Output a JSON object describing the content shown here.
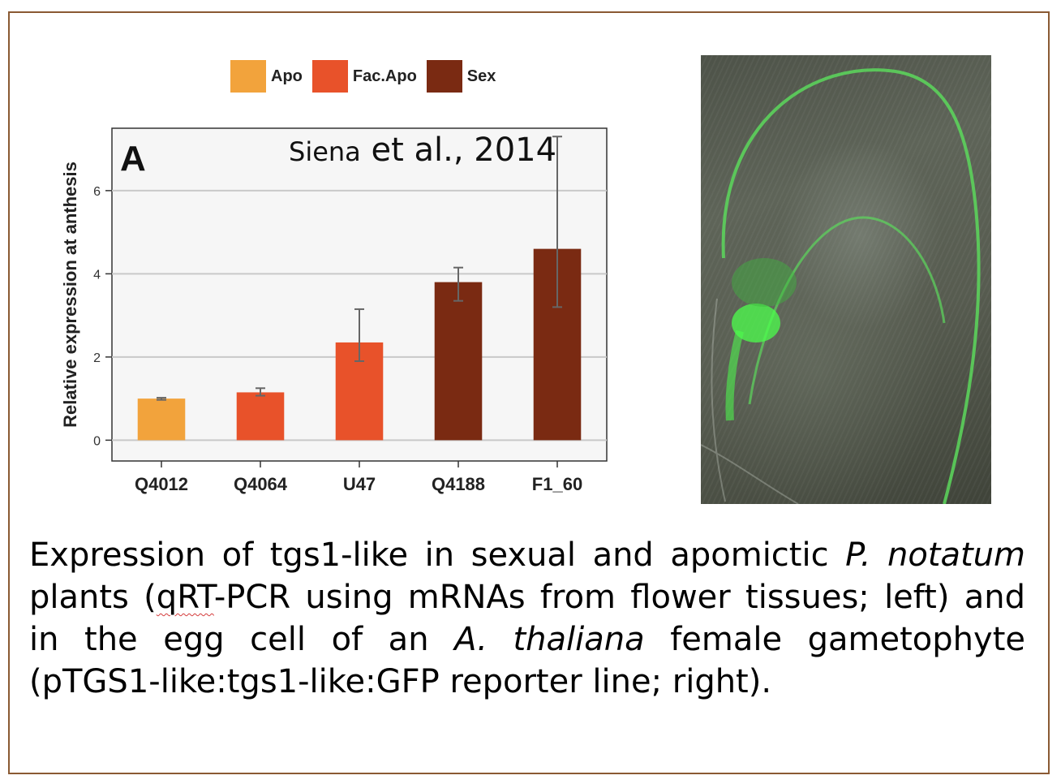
{
  "citation": {
    "author": "Siena",
    "rest": "et al., 2014"
  },
  "chart_data": {
    "type": "bar",
    "panel_label": "A",
    "ylabel": "Relative expression at anthesis",
    "ylim": [
      -0.5,
      7.5
    ],
    "yticks": [
      0,
      2,
      4,
      6
    ],
    "grid": true,
    "legend_position": "top",
    "legend": [
      {
        "name": "Apo",
        "color": "#f2a33c"
      },
      {
        "name": "Fac.Apo",
        "color": "#e8522a"
      },
      {
        "name": "Sex",
        "color": "#7a2a12"
      }
    ],
    "categories": [
      "Q4012",
      "Q4064",
      "U47",
      "Q4188",
      "F1_60"
    ],
    "values": [
      1.0,
      1.15,
      2.35,
      3.8,
      4.6
    ],
    "error_low": [
      0.97,
      1.07,
      1.9,
      3.35,
      3.2
    ],
    "error_high": [
      1.02,
      1.25,
      3.15,
      4.15,
      7.3
    ],
    "groups": [
      "Apo",
      "Fac.Apo",
      "Fac.Apo",
      "Sex",
      "Sex"
    ]
  },
  "image": {
    "name": "confocal-egg-cell-gfp",
    "accent": "#3cff3c"
  },
  "caption": {
    "p1": "Expression of tgs1-like in sexual and apomictic ",
    "p2": "P. notatum",
    "p3": " plants (",
    "p4": "qRT",
    "p5": "-PCR using mRNAs from flower tissues; left) and in the egg cell of an ",
    "p6": "A. thaliana",
    "p7": " female gametophyte (pTGS1-like:tgs1-like:GFP reporter line; right)."
  }
}
